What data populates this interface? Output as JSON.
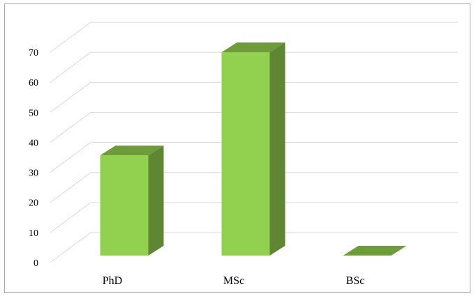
{
  "chart_data": {
    "type": "bar",
    "three_d": true,
    "categories": [
      "PhD",
      "MSc",
      "BSc"
    ],
    "values": [
      33,
      67,
      0
    ],
    "title": "",
    "xlabel": "",
    "ylabel": "",
    "ylim": [
      0,
      70
    ],
    "yticks": [
      0,
      10,
      20,
      30,
      40,
      50,
      60,
      70
    ],
    "grid": true,
    "legend": "none",
    "colors": {
      "front": "#92d050",
      "side": "#5f8733",
      "top": "#6f9c3b",
      "grid": "#d9d9d9",
      "border": "#a6a6a6"
    }
  }
}
